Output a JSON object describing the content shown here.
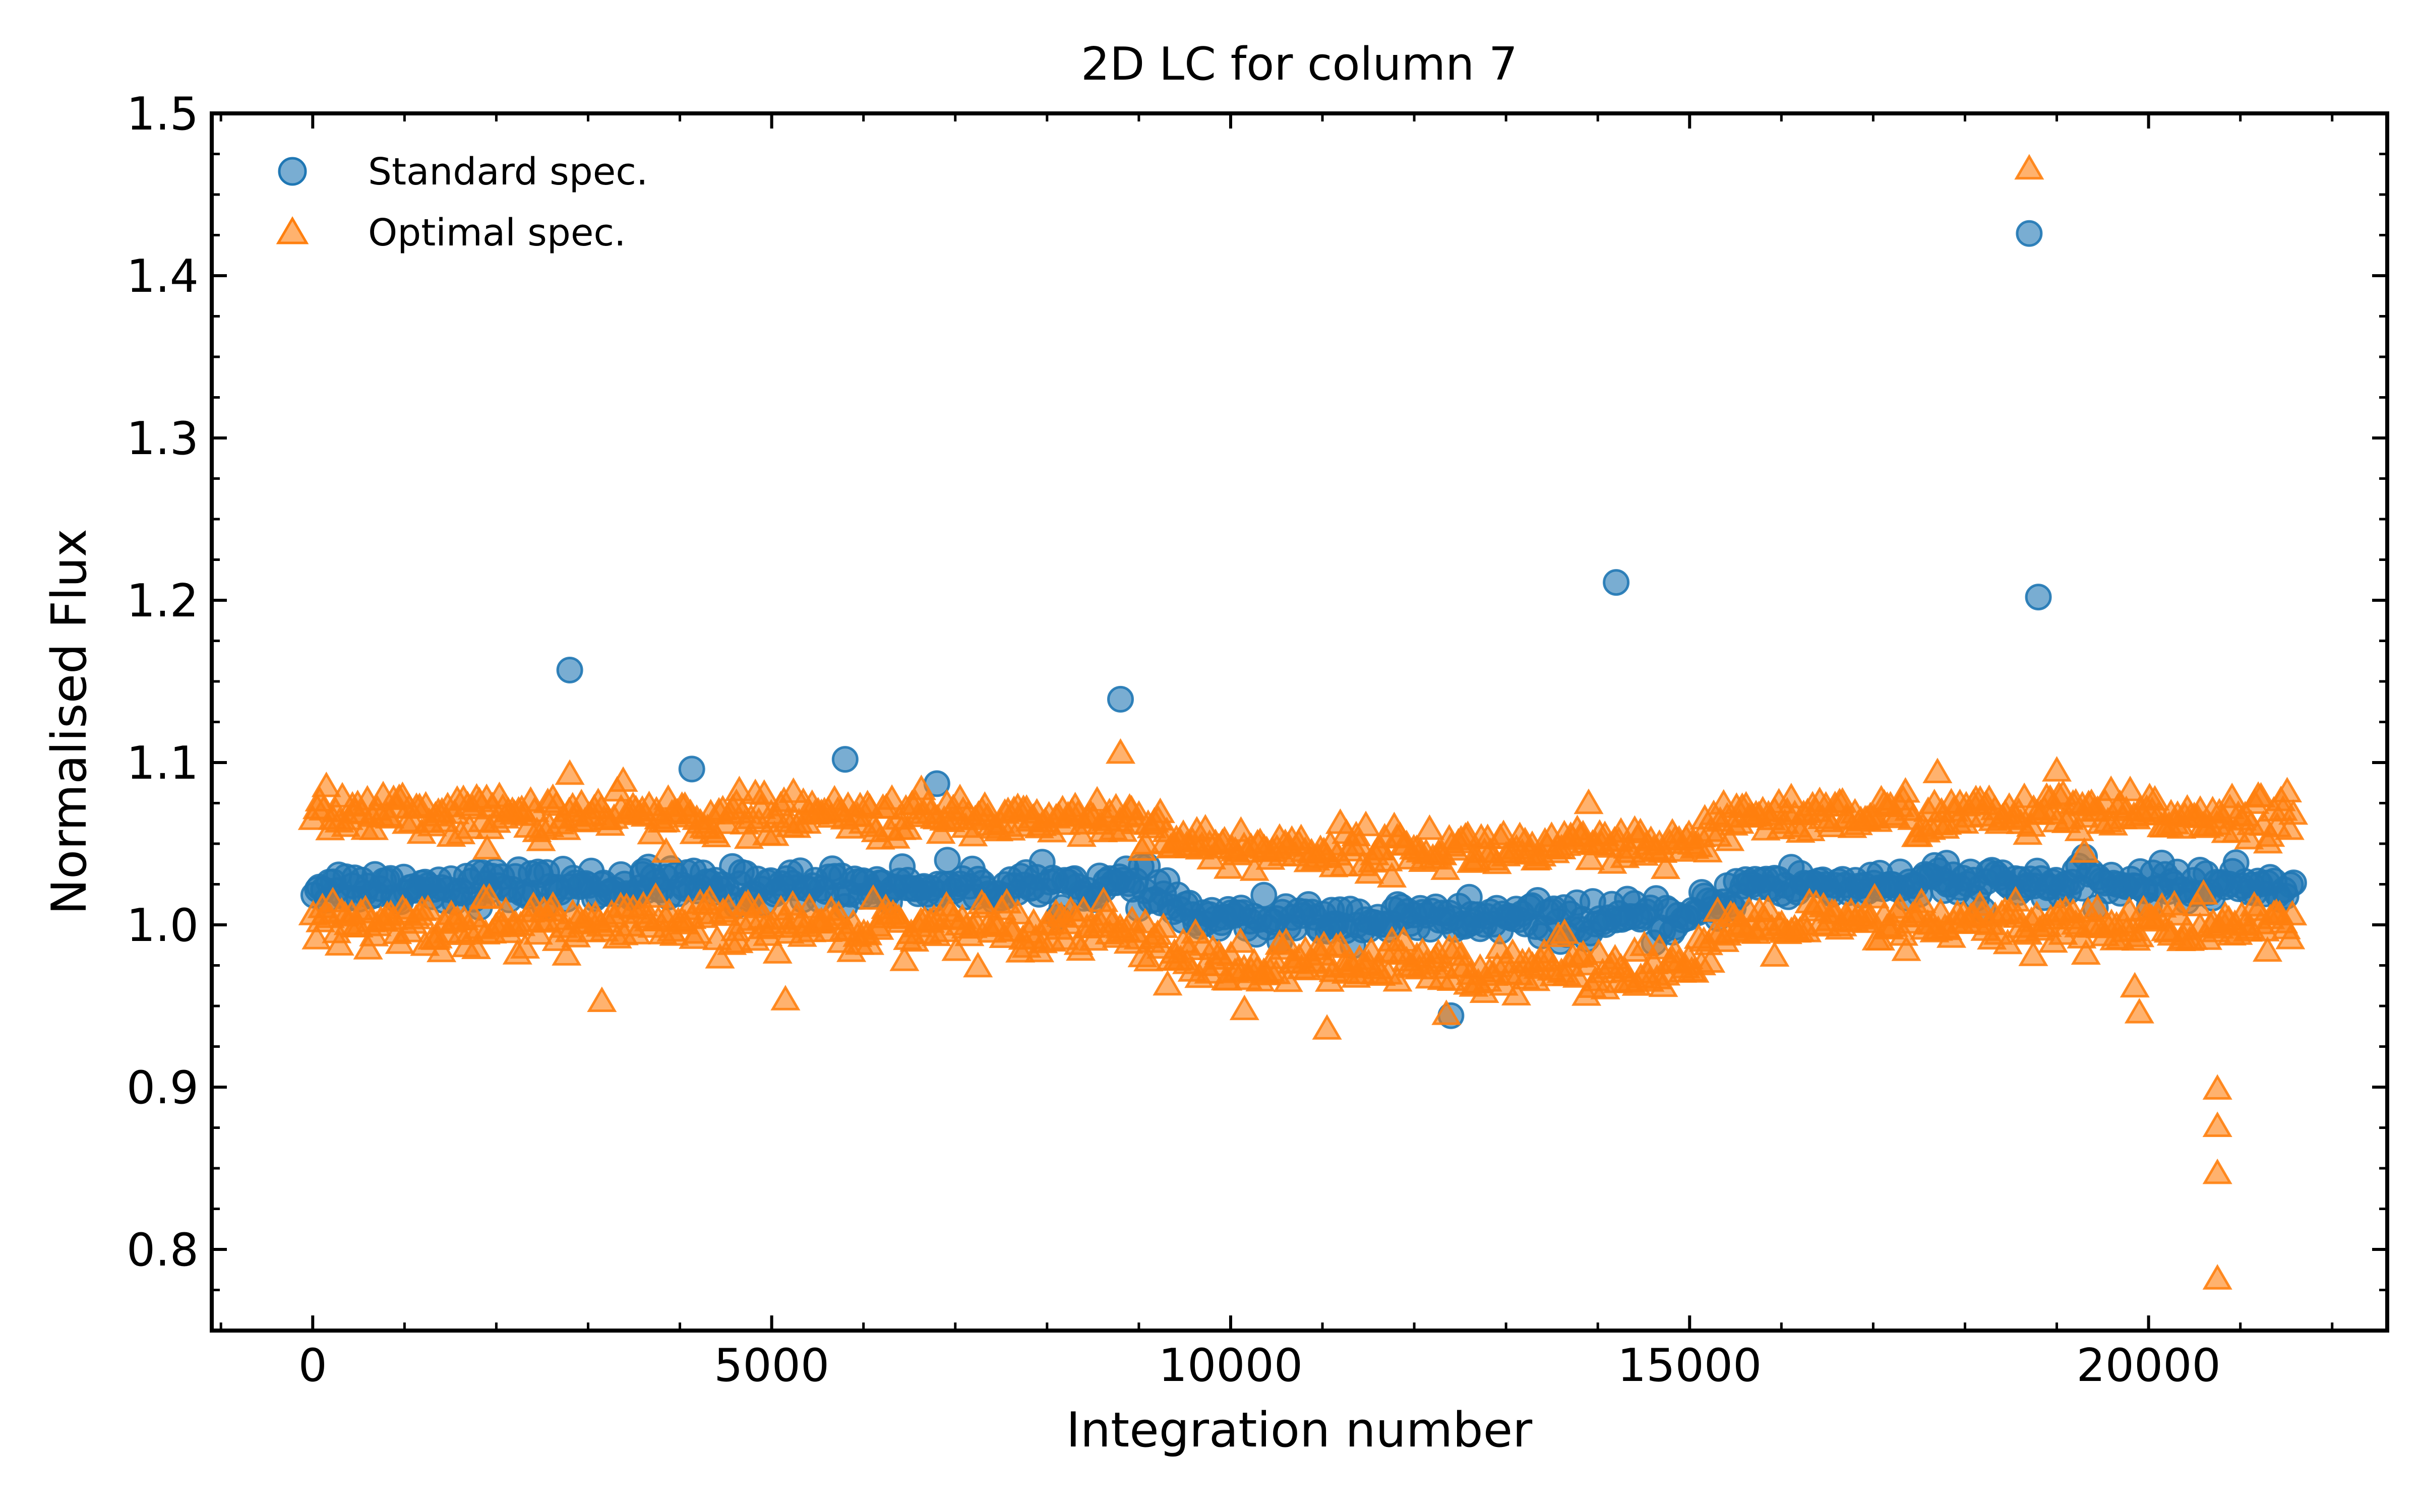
{
  "chart_data": {
    "type": "scatter",
    "title": "2D LC for column 7",
    "xlabel": "Integration number",
    "ylabel": "Normalised Flux",
    "xlim": [
      -1100,
      22600
    ],
    "ylim": [
      0.75,
      1.5
    ],
    "xticks": [
      0,
      5000,
      10000,
      15000,
      20000
    ],
    "yticks": [
      0.8,
      0.9,
      1.0,
      1.1,
      1.2,
      1.3,
      1.4,
      1.5
    ],
    "xtick_labels": [
      "0",
      "5000",
      "10000",
      "15000",
      "20000"
    ],
    "ytick_labels": [
      "0.8",
      "0.9",
      "1.0",
      "1.1",
      "1.2",
      "1.3",
      "1.4",
      "1.5"
    ],
    "grid": false,
    "legend": {
      "placement": "top-left",
      "entries": [
        "Standard spec.",
        "Optimal spec."
      ]
    },
    "x_range": [
      0,
      21600
    ],
    "series": [
      {
        "name": "Standard spec.",
        "marker": "circle",
        "color": "#1f77b4",
        "bands": [
          {
            "name": "main",
            "baseline": [
              [
                0,
                1.024
              ],
              [
                9000,
                1.024
              ],
              [
                9700,
                1.003
              ],
              [
                15000,
                1.003
              ],
              [
                15600,
                1.025
              ],
              [
                21600,
                1.025
              ]
            ],
            "spread": 0.01
          }
        ],
        "outliers": [
          [
            2800,
            1.157
          ],
          [
            4130,
            1.096
          ],
          [
            5800,
            1.102
          ],
          [
            6800,
            1.087
          ],
          [
            8800,
            1.139
          ],
          [
            14200,
            1.211
          ],
          [
            18700,
            1.426
          ],
          [
            18800,
            1.202
          ],
          [
            17800,
            1.038
          ],
          [
            12400,
            0.944
          ],
          [
            12600,
            1.017
          ],
          [
            11100,
            1.009
          ],
          [
            3600,
            1.033
          ]
        ]
      },
      {
        "name": "Optimal spec.",
        "marker": "triangle",
        "color": "#ff7f0e",
        "bands": [
          {
            "name": "upper",
            "baseline": [
              [
                0,
                1.069
              ],
              [
                9000,
                1.066
              ],
              [
                9700,
                1.047
              ],
              [
                15000,
                1.047
              ],
              [
                15600,
                1.068
              ],
              [
                21600,
                1.068
              ]
            ],
            "spread": 0.012
          },
          {
            "name": "lower",
            "baseline": [
              [
                0,
                1.0
              ],
              [
                8800,
                1.0
              ],
              [
                9700,
                0.975
              ],
              [
                15000,
                0.975
              ],
              [
                15600,
                1.0
              ],
              [
                21600,
                1.0
              ]
            ],
            "spread": 0.014
          }
        ],
        "outliers": [
          [
            18700,
            1.466
          ],
          [
            8800,
            1.106
          ],
          [
            19000,
            1.095
          ],
          [
            3150,
            0.953
          ],
          [
            5150,
            0.954
          ],
          [
            10150,
            0.948
          ],
          [
            11050,
            0.936
          ],
          [
            12350,
            0.945
          ],
          [
            19850,
            0.962
          ],
          [
            19900,
            0.946
          ],
          [
            20750,
            0.899
          ],
          [
            20750,
            0.876
          ],
          [
            20750,
            0.847
          ],
          [
            20750,
            0.782
          ],
          [
            2800,
            1.093
          ],
          [
            17700,
            1.094
          ],
          [
            13900,
            1.075
          ],
          [
            1900,
            1.047
          ],
          [
            3850,
            1.045
          ],
          [
            19300,
            1.045
          ]
        ]
      }
    ]
  }
}
